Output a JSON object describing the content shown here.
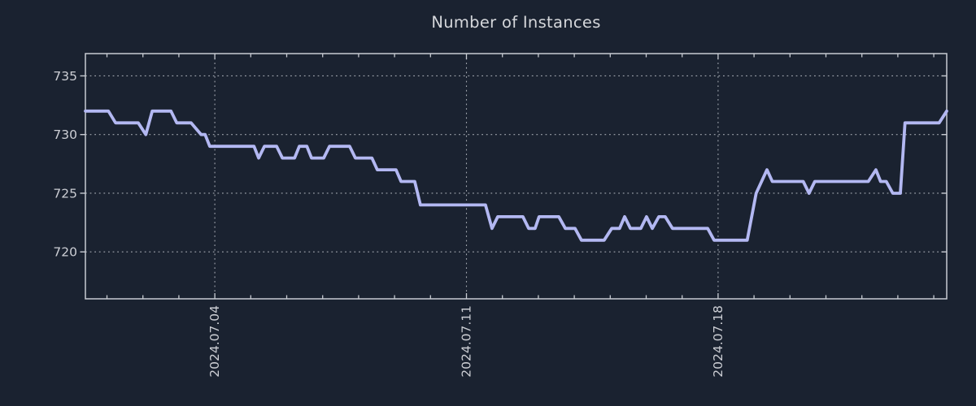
{
  "title": "Number of Instances",
  "colors": {
    "background": "#1a2230",
    "line": "#b3b8f2",
    "grid": "#a3a8b0",
    "axis": "#c7cbd2",
    "tick_label": "#ccced4",
    "title": "#d5d7db"
  },
  "chart_data": {
    "type": "line",
    "title": "Number of Instances",
    "xlabel": "",
    "ylabel": "",
    "x_unit": "days relative to 2024-07-04",
    "xlim": [
      -3.6,
      20.36
    ],
    "ylim": [
      716.0,
      736.9
    ],
    "grid": "dotted",
    "legend_position": "none",
    "yticks": [
      {
        "v": 735,
        "label": "735"
      },
      {
        "v": 730,
        "label": "730"
      },
      {
        "v": 725,
        "label": "725"
      },
      {
        "v": 720,
        "label": "720"
      }
    ],
    "xticks": [
      {
        "t": 0,
        "label": "2024.07.04"
      },
      {
        "t": 7,
        "label": "2024.07.11"
      },
      {
        "t": 14,
        "label": "2024.07.18"
      }
    ],
    "minor_xticks": [
      -3,
      -2,
      -1,
      0,
      1,
      2,
      3,
      4,
      5,
      6,
      7,
      8,
      9,
      10,
      11,
      12,
      13,
      14,
      15,
      16,
      17,
      18,
      19,
      20
    ],
    "series": [
      {
        "name": "instances",
        "points": [
          [
            -3.6,
            732
          ],
          [
            -2.96,
            732
          ],
          [
            -2.76,
            731
          ],
          [
            -2.13,
            731
          ],
          [
            -1.92,
            730
          ],
          [
            -1.74,
            732
          ],
          [
            -1.22,
            732
          ],
          [
            -1.06,
            731
          ],
          [
            -0.66,
            731
          ],
          [
            -0.38,
            730
          ],
          [
            -0.27,
            730
          ],
          [
            -0.14,
            729
          ],
          [
            1.09,
            729
          ],
          [
            1.22,
            728
          ],
          [
            1.38,
            729
          ],
          [
            1.72,
            729
          ],
          [
            1.88,
            728
          ],
          [
            2.22,
            728
          ],
          [
            2.35,
            729
          ],
          [
            2.56,
            729
          ],
          [
            2.69,
            728
          ],
          [
            3.03,
            728
          ],
          [
            3.19,
            729
          ],
          [
            3.75,
            729
          ],
          [
            3.91,
            728
          ],
          [
            4.37,
            728
          ],
          [
            4.52,
            727
          ],
          [
            5.04,
            727
          ],
          [
            5.18,
            726
          ],
          [
            5.56,
            726
          ],
          [
            5.72,
            724
          ],
          [
            7.53,
            724
          ],
          [
            7.71,
            722
          ],
          [
            7.87,
            723
          ],
          [
            8.57,
            723
          ],
          [
            8.73,
            722
          ],
          [
            8.91,
            722
          ],
          [
            9.02,
            723
          ],
          [
            9.57,
            723
          ],
          [
            9.75,
            722
          ],
          [
            10.02,
            722
          ],
          [
            10.2,
            721
          ],
          [
            10.83,
            721
          ],
          [
            11.04,
            722
          ],
          [
            11.26,
            722
          ],
          [
            11.4,
            723
          ],
          [
            11.56,
            722
          ],
          [
            11.85,
            722
          ],
          [
            12.01,
            723
          ],
          [
            12.17,
            722
          ],
          [
            12.35,
            723
          ],
          [
            12.53,
            723
          ],
          [
            12.73,
            722
          ],
          [
            13.71,
            722
          ],
          [
            13.89,
            721
          ],
          [
            14.81,
            721
          ],
          [
            15.06,
            725
          ],
          [
            15.36,
            727
          ],
          [
            15.51,
            726
          ],
          [
            16.37,
            726
          ],
          [
            16.53,
            725
          ],
          [
            16.69,
            726
          ],
          [
            18.18,
            726
          ],
          [
            18.39,
            727
          ],
          [
            18.52,
            726
          ],
          [
            18.68,
            726
          ],
          [
            18.86,
            725
          ],
          [
            19.07,
            725
          ],
          [
            19.2,
            731
          ],
          [
            20.15,
            731
          ],
          [
            20.36,
            732
          ]
        ]
      }
    ]
  }
}
